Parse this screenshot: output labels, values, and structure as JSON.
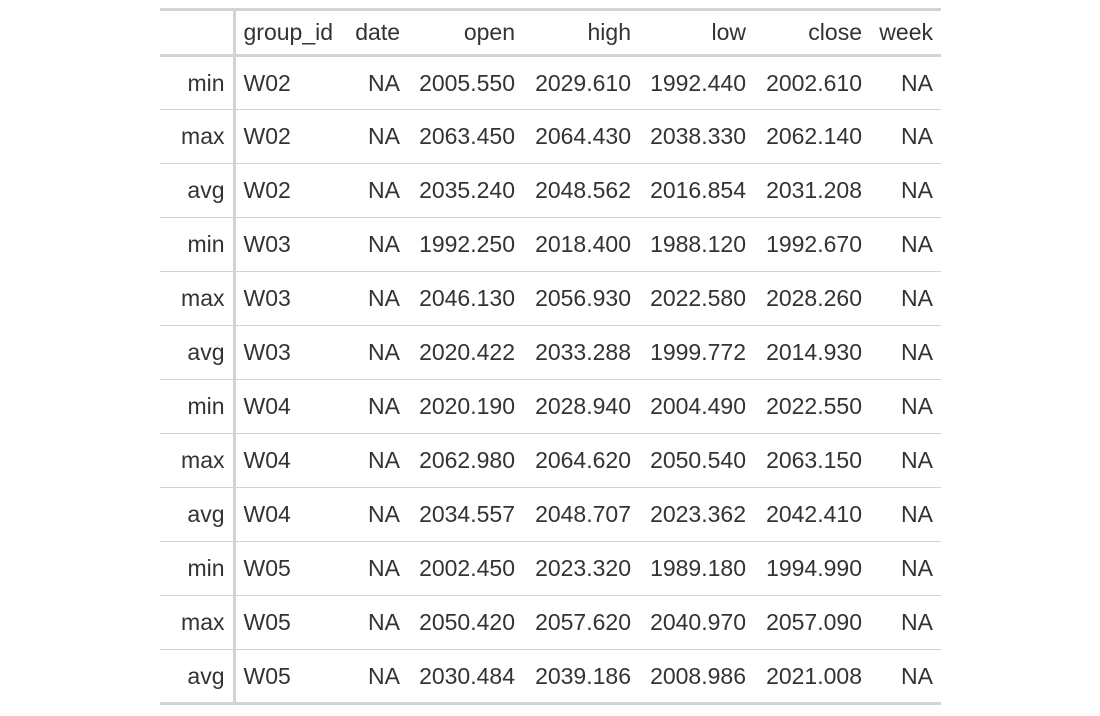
{
  "table": {
    "columns": [
      {
        "key": "stub",
        "label": "",
        "align": "right"
      },
      {
        "key": "group_id",
        "label": "group_id",
        "align": "left"
      },
      {
        "key": "date",
        "label": "date",
        "align": "right"
      },
      {
        "key": "open",
        "label": "open",
        "align": "right"
      },
      {
        "key": "high",
        "label": "high",
        "align": "right"
      },
      {
        "key": "low",
        "label": "low",
        "align": "right"
      },
      {
        "key": "close",
        "label": "close",
        "align": "right"
      },
      {
        "key": "week",
        "label": "week",
        "align": "right"
      }
    ],
    "rows": [
      {
        "stub": "min",
        "group_id": "W02",
        "date": "NA",
        "open": "2005.550",
        "high": "2029.610",
        "low": "1992.440",
        "close": "2002.610",
        "week": "NA"
      },
      {
        "stub": "max",
        "group_id": "W02",
        "date": "NA",
        "open": "2063.450",
        "high": "2064.430",
        "low": "2038.330",
        "close": "2062.140",
        "week": "NA"
      },
      {
        "stub": "avg",
        "group_id": "W02",
        "date": "NA",
        "open": "2035.240",
        "high": "2048.562",
        "low": "2016.854",
        "close": "2031.208",
        "week": "NA"
      },
      {
        "stub": "min",
        "group_id": "W03",
        "date": "NA",
        "open": "1992.250",
        "high": "2018.400",
        "low": "1988.120",
        "close": "1992.670",
        "week": "NA"
      },
      {
        "stub": "max",
        "group_id": "W03",
        "date": "NA",
        "open": "2046.130",
        "high": "2056.930",
        "low": "2022.580",
        "close": "2028.260",
        "week": "NA"
      },
      {
        "stub": "avg",
        "group_id": "W03",
        "date": "NA",
        "open": "2020.422",
        "high": "2033.288",
        "low": "1999.772",
        "close": "2014.930",
        "week": "NA"
      },
      {
        "stub": "min",
        "group_id": "W04",
        "date": "NA",
        "open": "2020.190",
        "high": "2028.940",
        "low": "2004.490",
        "close": "2022.550",
        "week": "NA"
      },
      {
        "stub": "max",
        "group_id": "W04",
        "date": "NA",
        "open": "2062.980",
        "high": "2064.620",
        "low": "2050.540",
        "close": "2063.150",
        "week": "NA"
      },
      {
        "stub": "avg",
        "group_id": "W04",
        "date": "NA",
        "open": "2034.557",
        "high": "2048.707",
        "low": "2023.362",
        "close": "2042.410",
        "week": "NA"
      },
      {
        "stub": "min",
        "group_id": "W05",
        "date": "NA",
        "open": "2002.450",
        "high": "2023.320",
        "low": "1989.180",
        "close": "1994.990",
        "week": "NA"
      },
      {
        "stub": "max",
        "group_id": "W05",
        "date": "NA",
        "open": "2050.420",
        "high": "2057.620",
        "low": "2040.970",
        "close": "2057.090",
        "week": "NA"
      },
      {
        "stub": "avg",
        "group_id": "W05",
        "date": "NA",
        "open": "2030.484",
        "high": "2039.186",
        "low": "2008.986",
        "close": "2021.008",
        "week": "NA"
      }
    ]
  }
}
